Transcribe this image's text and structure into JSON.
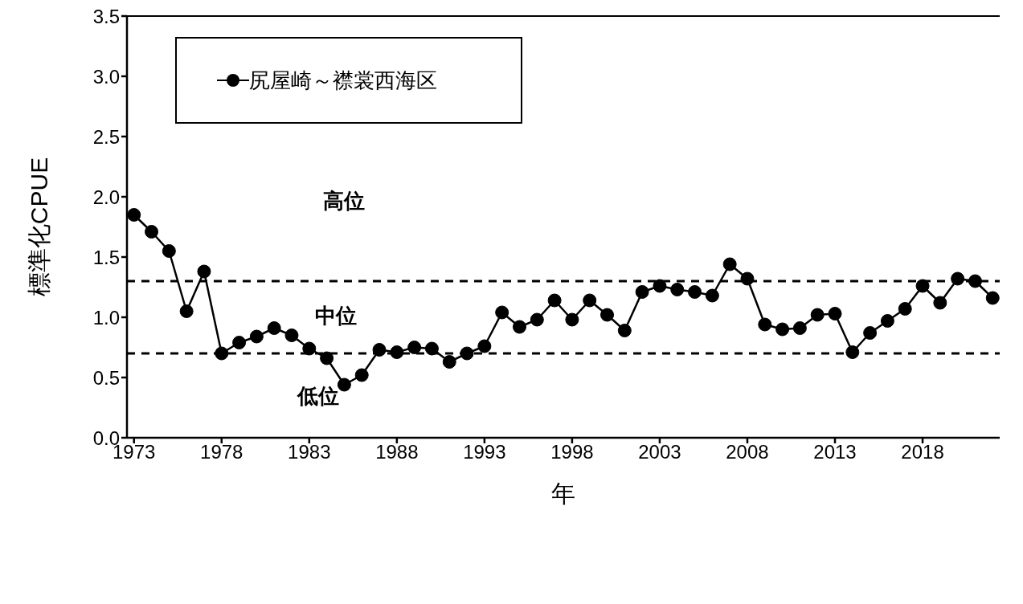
{
  "chart_data": {
    "type": "line",
    "xlabel": "年",
    "ylabel": "標準化CPUE",
    "x": [
      1973,
      1974,
      1975,
      1976,
      1977,
      1978,
      1979,
      1980,
      1981,
      1982,
      1983,
      1984,
      1985,
      1986,
      1987,
      1988,
      1989,
      1990,
      1991,
      1992,
      1993,
      1994,
      1995,
      1996,
      1997,
      1998,
      1999,
      2000,
      2001,
      2002,
      2003,
      2004,
      2005,
      2006,
      2007,
      2008,
      2009,
      2010,
      2011,
      2012,
      2013,
      2014,
      2015,
      2016,
      2017,
      2018,
      2019,
      2020,
      2021,
      2022
    ],
    "series": [
      {
        "name": "尻屋崎～襟裳西海区",
        "color": "#000000",
        "values": [
          1.85,
          1.71,
          1.55,
          1.05,
          1.38,
          0.7,
          0.79,
          0.84,
          0.91,
          0.85,
          0.74,
          0.66,
          0.44,
          0.52,
          0.73,
          0.71,
          0.75,
          0.74,
          0.63,
          0.7,
          0.76,
          1.04,
          0.92,
          0.98,
          1.14,
          0.98,
          1.14,
          1.02,
          0.89,
          1.21,
          1.26,
          1.23,
          1.21,
          1.18,
          1.44,
          1.32,
          0.94,
          0.9,
          0.91,
          1.02,
          1.03,
          0.71,
          0.87,
          0.97,
          1.07,
          1.26,
          1.12,
          1.32,
          1.3,
          1.16
        ]
      }
    ],
    "xlim": [
      1972.6,
      2022.4
    ],
    "xticks": [
      1973,
      1978,
      1983,
      1988,
      1993,
      1998,
      2003,
      2008,
      2013,
      2018
    ],
    "ylim": [
      0,
      3.5
    ],
    "yticks": [
      {
        "value": 0,
        "label": "0.0"
      },
      0.5,
      {
        "value": 1,
        "label": "1.0"
      },
      1.5,
      {
        "value": 2,
        "label": "2.0"
      },
      2.5,
      {
        "value": 3,
        "label": "3.0"
      },
      3.5
    ],
    "ref_lines": [
      {
        "axis": "y",
        "value": 1.3,
        "color": "#000000",
        "line_style": "dashed"
      },
      {
        "axis": "y",
        "value": 0.7,
        "color": "#000000",
        "line_style": "dashed"
      }
    ],
    "annotations": [
      "高位",
      "中位",
      "低位"
    ],
    "grid": false,
    "legend": "top left",
    "marker": "circle",
    "line_style": "solid"
  }
}
